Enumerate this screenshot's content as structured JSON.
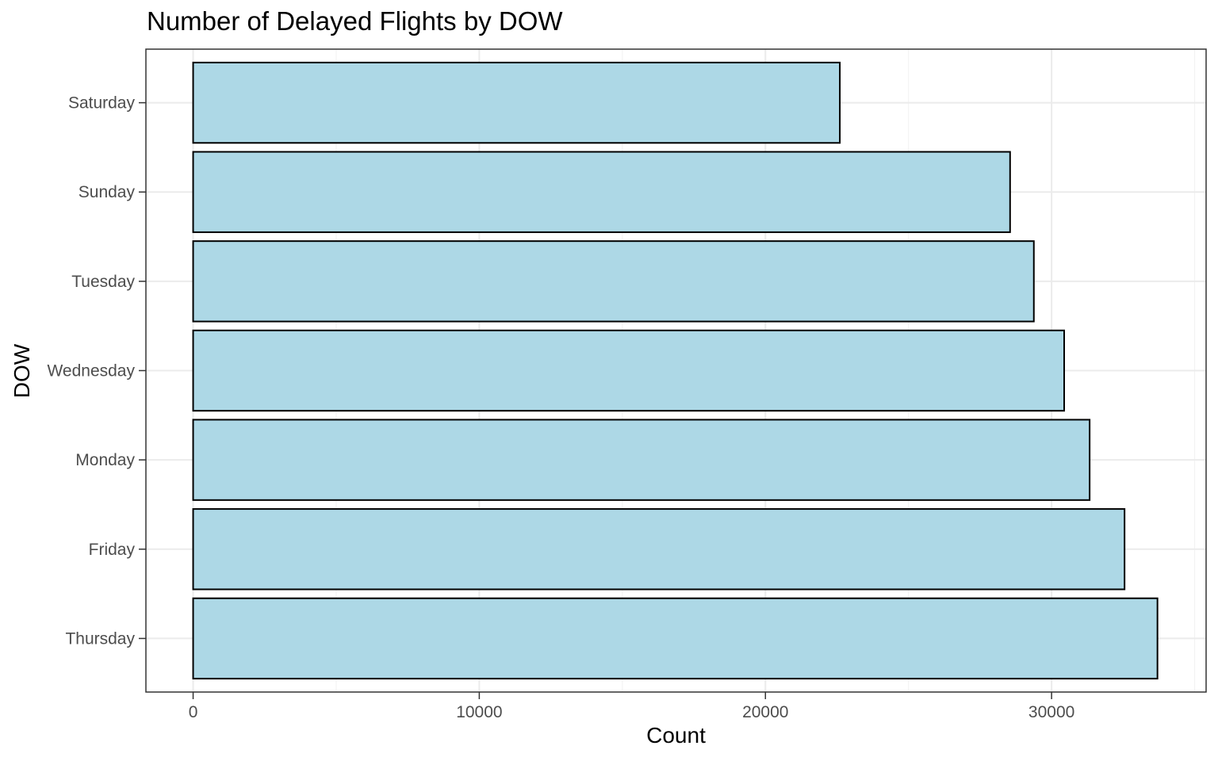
{
  "chart_data": {
    "type": "bar",
    "orientation": "horizontal",
    "title": "Number of Delayed Flights by DOW",
    "xlabel": "Count",
    "ylabel": "DOW",
    "categories": [
      "Thursday",
      "Friday",
      "Monday",
      "Wednesday",
      "Tuesday",
      "Sunday",
      "Saturday"
    ],
    "values": [
      33700,
      32550,
      31330,
      30440,
      29380,
      28550,
      22600
    ],
    "x_ticks": [
      0,
      10000,
      20000,
      30000
    ],
    "xlim": [
      -1650,
      35400
    ],
    "grid": true,
    "legend": "none",
    "colors": {
      "bar_fill": "#add8e6",
      "bar_stroke": "#000000",
      "grid_major": "#ebebeb",
      "grid_minor": "#f2f2f2",
      "panel_border": "#333333",
      "tick_label": "#4d4d4d"
    }
  }
}
